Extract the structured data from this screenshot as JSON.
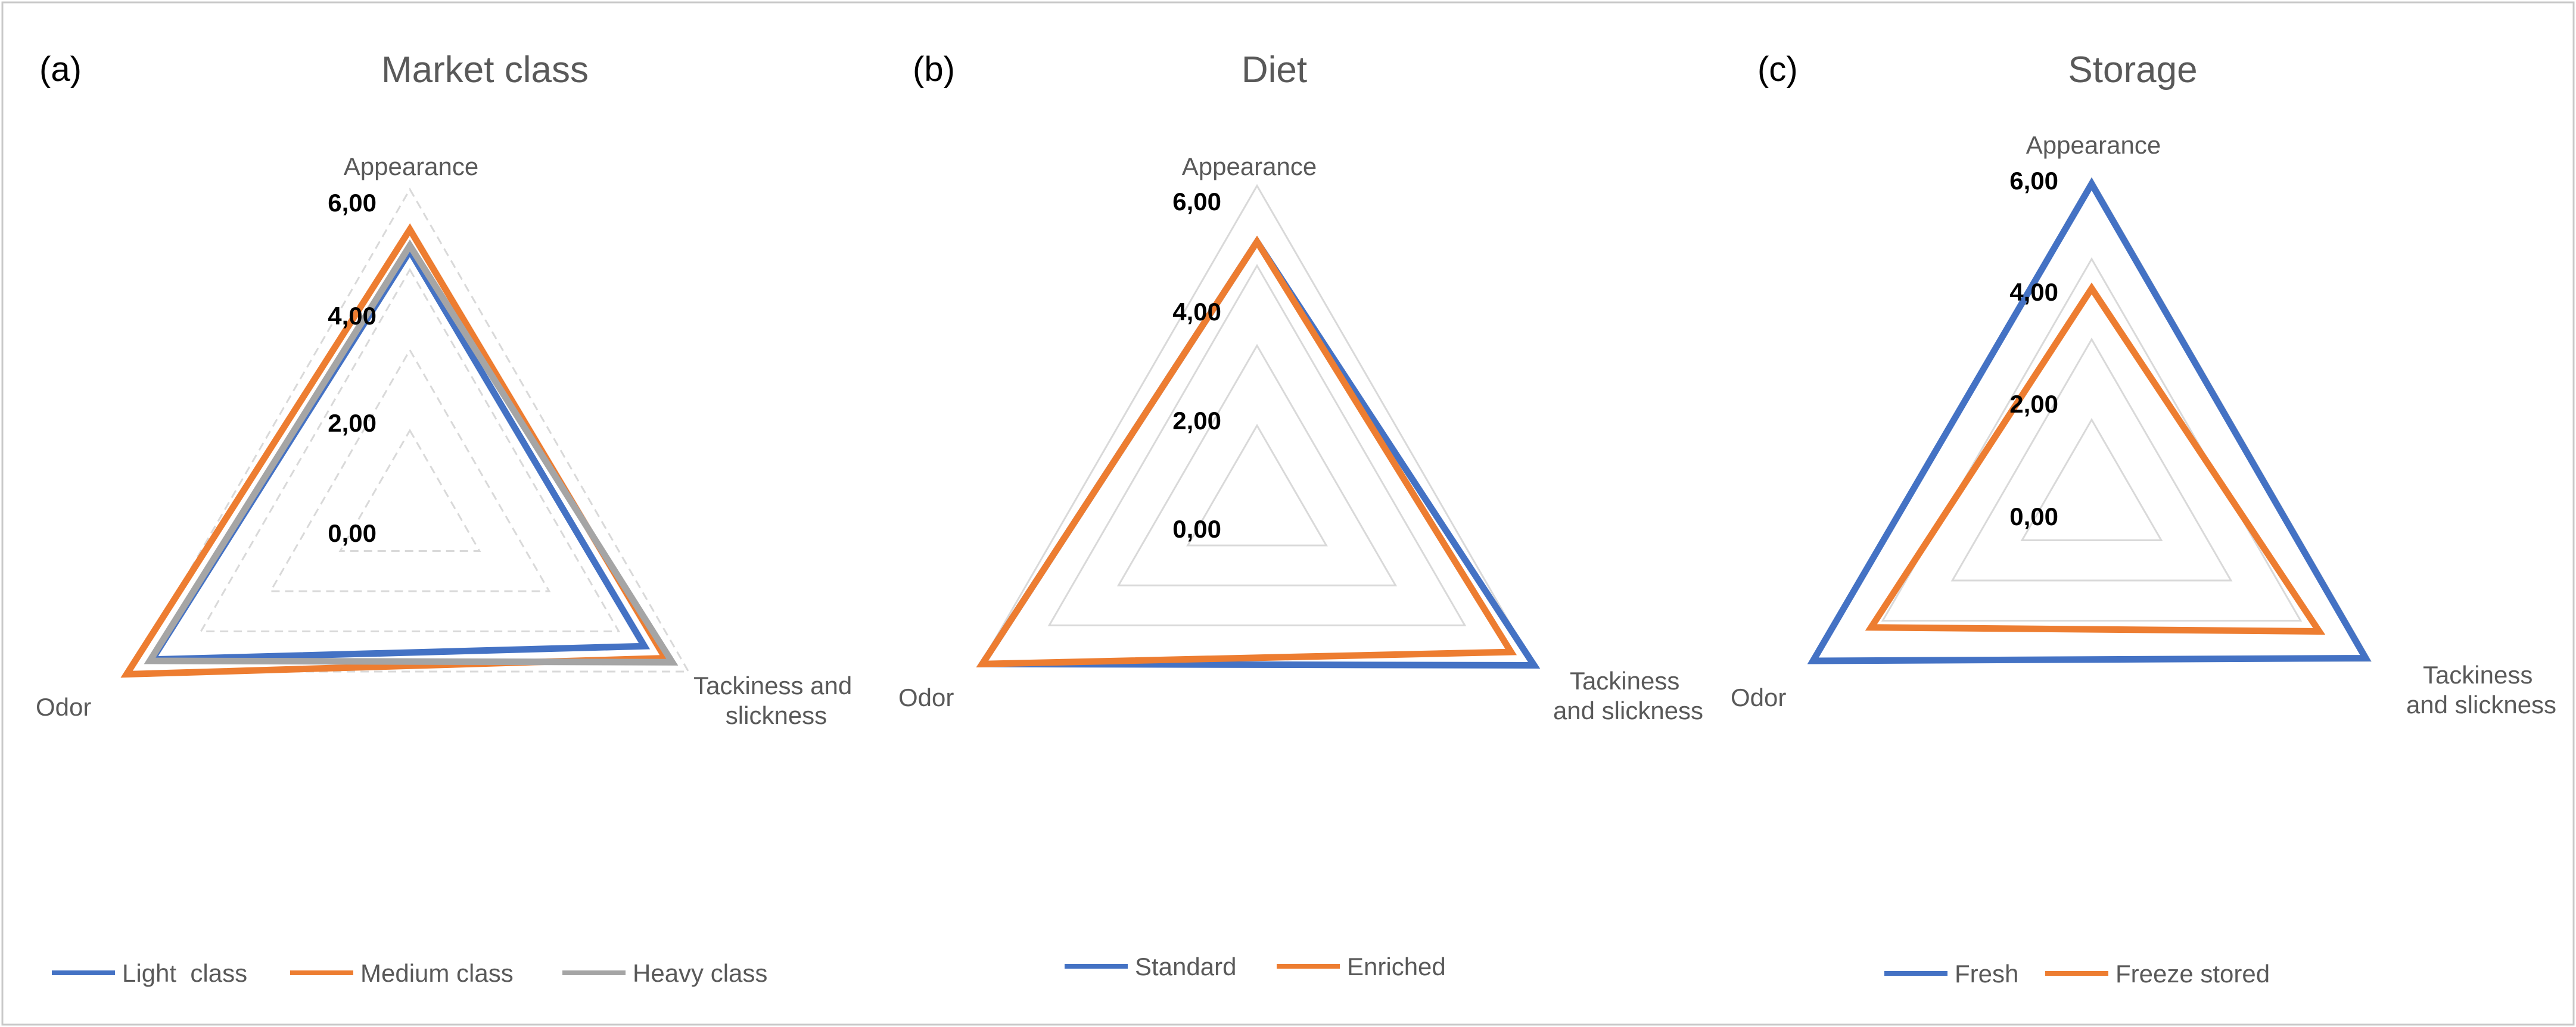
{
  "chart_data": [
    {
      "type": "radar",
      "panel_label": "(a)",
      "title": "Market class",
      "axes": [
        "Appearance",
        "Tackiness and slickness",
        "Odor"
      ],
      "rlim": [
        0,
        6
      ],
      "ticks": [
        "0,00",
        "2,00",
        "4,00",
        "6,00"
      ],
      "grid": "dashed",
      "legend_position": "bottom",
      "series": [
        {
          "name": "Light  class",
          "color": "#4472C4",
          "values": [
            4.85,
            5.05,
            5.55
          ]
        },
        {
          "name": "Medium class",
          "color": "#ED7D31",
          "values": [
            5.25,
            5.5,
            6.1
          ]
        },
        {
          "name": "Heavy class",
          "color": "#A5A5A5",
          "values": [
            4.95,
            5.65,
            5.6
          ]
        }
      ]
    },
    {
      "type": "radar",
      "panel_label": "(b)",
      "title": "Diet",
      "axes": [
        "Appearance",
        "Tackiness and slickness",
        "Odor"
      ],
      "rlim": [
        0,
        6
      ],
      "ticks": [
        "0,00",
        "2,00",
        "4,00",
        "6,00"
      ],
      "grid": "solid",
      "legend_position": "bottom",
      "series": [
        {
          "name": "Standard",
          "color": "#4472C4",
          "values": [
            4.95,
            6.0,
            5.95
          ]
        },
        {
          "name": "Enriched",
          "color": "#ED7D31",
          "values": [
            4.95,
            5.5,
            5.95
          ]
        }
      ]
    },
    {
      "type": "radar",
      "panel_label": "(c)",
      "title": "Storage",
      "axes": [
        "Appearance",
        "Tackiness and slickness",
        "Odor"
      ],
      "rlim": [
        0,
        6
      ],
      "ticks": [
        "0,00",
        "2,00",
        "4,00",
        "6,00"
      ],
      "grid": "solid",
      "legend_position": "bottom",
      "series": [
        {
          "name": "Fresh",
          "color": "#4472C4",
          "values": [
            5.9,
            5.9,
            6.0
          ]
        },
        {
          "name": "Freeze stored",
          "color": "#ED7D31",
          "values": [
            3.95,
            4.9,
            4.75
          ]
        }
      ]
    }
  ]
}
